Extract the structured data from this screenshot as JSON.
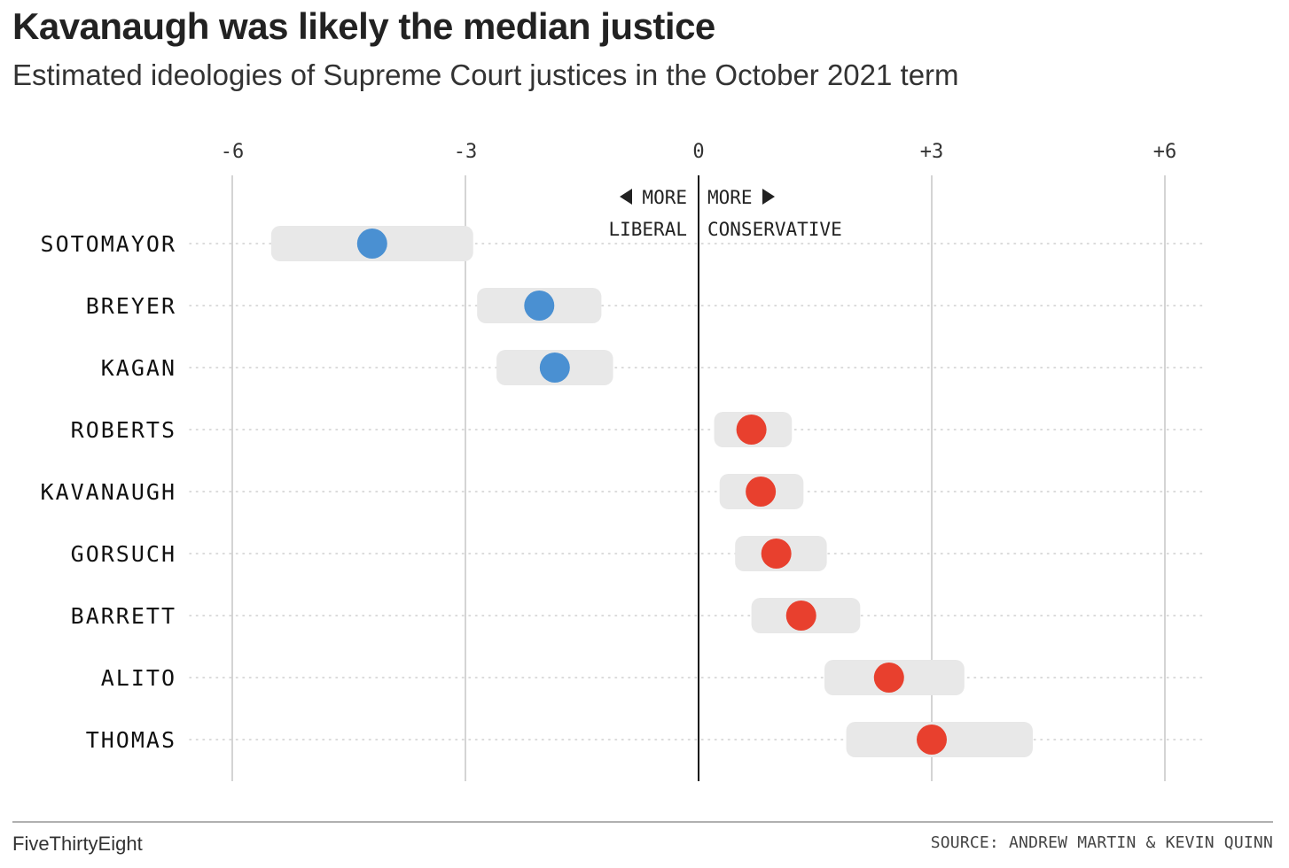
{
  "title": "Kavanaugh was likely the median justice",
  "subtitle": "Estimated ideologies of Supreme Court justices in the October 2021 term",
  "footer": {
    "brand": "FiveThirtyEight",
    "source": "SOURCE: ANDREW MARTIN & KEVIN QUINN"
  },
  "annotations": {
    "left_line1": "MORE",
    "left_line2": "LIBERAL",
    "right_line1": "MORE",
    "right_line2": "CONSERVATIVE"
  },
  "colors": {
    "liberal": "#4a90d2",
    "conservative": "#e8402e",
    "interval": "#e8e8e8",
    "gridline": "#aaaaaa",
    "zero_line": "#111111"
  },
  "chart_data": {
    "type": "dot-interval",
    "title": "Kavanaugh was likely the median justice",
    "subtitle": "Estimated ideologies of Supreme Court justices in the October 2021 term",
    "xlim": [
      -6,
      6
    ],
    "xticks": [
      -6,
      -3,
      0,
      3,
      6
    ],
    "xtick_labels": [
      "-6",
      "-3",
      "0",
      "+3",
      "+6"
    ],
    "grid": true,
    "categories": [
      "SOTOMAYOR",
      "BREYER",
      "KAGAN",
      "ROBERTS",
      "KAVANAUGH",
      "GORSUCH",
      "BARRETT",
      "ALITO",
      "THOMAS"
    ],
    "points": [
      {
        "name": "SOTOMAYOR",
        "estimate": -4.2,
        "low": -5.5,
        "high": -2.9,
        "side": "liberal"
      },
      {
        "name": "BREYER",
        "estimate": -2.05,
        "low": -2.85,
        "high": -1.25,
        "side": "liberal"
      },
      {
        "name": "KAGAN",
        "estimate": -1.85,
        "low": -2.6,
        "high": -1.1,
        "side": "liberal"
      },
      {
        "name": "ROBERTS",
        "estimate": 0.68,
        "low": 0.2,
        "high": 1.2,
        "side": "conservative"
      },
      {
        "name": "KAVANAUGH",
        "estimate": 0.8,
        "low": 0.27,
        "high": 1.35,
        "side": "conservative"
      },
      {
        "name": "GORSUCH",
        "estimate": 1.0,
        "low": 0.47,
        "high": 1.65,
        "side": "conservative"
      },
      {
        "name": "BARRETT",
        "estimate": 1.32,
        "low": 0.68,
        "high": 2.08,
        "side": "conservative"
      },
      {
        "name": "ALITO",
        "estimate": 2.45,
        "low": 1.62,
        "high": 3.42,
        "side": "conservative"
      },
      {
        "name": "THOMAS",
        "estimate": 3.0,
        "low": 1.9,
        "high": 4.3,
        "side": "conservative"
      }
    ]
  }
}
